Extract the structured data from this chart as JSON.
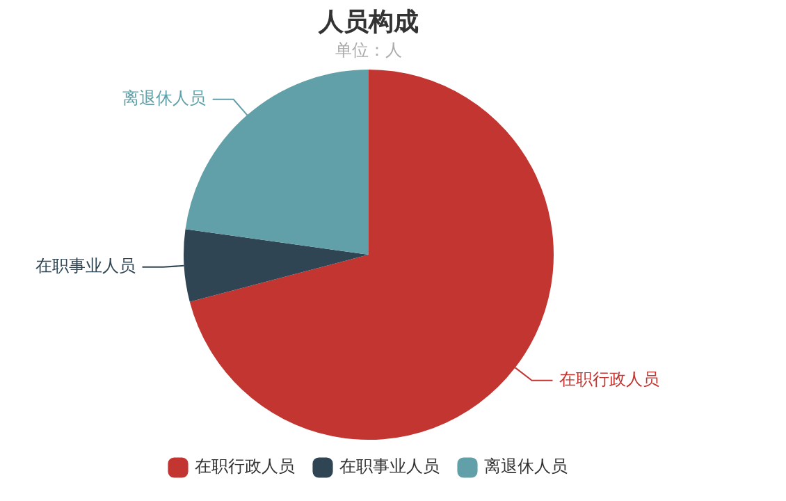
{
  "chart_data": {
    "type": "pie",
    "title": "人员构成",
    "subtitle": "单位：人",
    "categories": [
      "在职行政人员",
      "在职事业人员",
      "离退休人员"
    ],
    "values": [
      70.9,
      6.3,
      22.8
    ],
    "colors": [
      "#c23531",
      "#2f4554",
      "#61a0a8"
    ],
    "legend": "bottom"
  }
}
